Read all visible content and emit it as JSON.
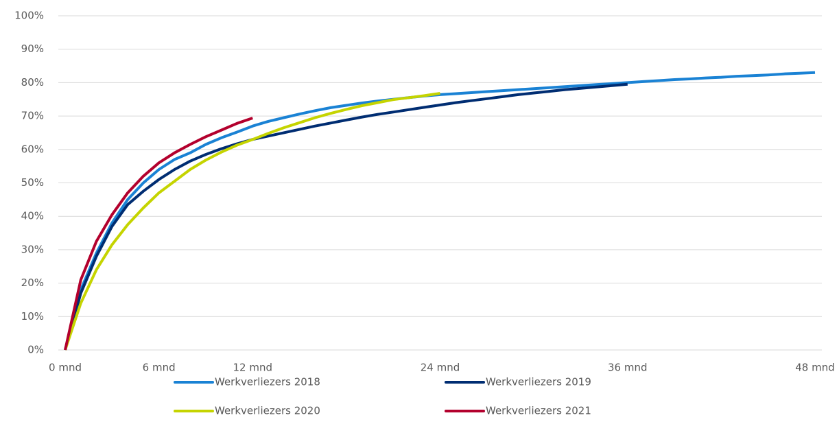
{
  "chart_data": {
    "type": "line",
    "x": [
      0,
      1,
      2,
      3,
      4,
      5,
      6,
      7,
      8,
      9,
      10,
      11,
      12,
      13,
      14,
      15,
      16,
      17,
      18,
      19,
      20,
      21,
      22,
      23,
      24,
      25,
      26,
      27,
      28,
      29,
      30,
      31,
      32,
      33,
      34,
      35,
      36,
      37,
      38,
      39,
      40,
      41,
      42,
      43,
      44,
      45,
      46,
      47,
      48
    ],
    "xlim": [
      0,
      48
    ],
    "xticks": [
      {
        "value": 0,
        "label": "0 mnd"
      },
      {
        "value": 6,
        "label": "6 mnd"
      },
      {
        "value": 12,
        "label": "12 mnd"
      },
      {
        "value": 24,
        "label": "24 mnd"
      },
      {
        "value": 36,
        "label": "36 mnd"
      },
      {
        "value": 48,
        "label": "48 mnd"
      }
    ],
    "ylim": [
      0,
      100
    ],
    "yticks": [
      {
        "value": 0,
        "label": "0%"
      },
      {
        "value": 10,
        "label": "10%"
      },
      {
        "value": 20,
        "label": "20%"
      },
      {
        "value": 30,
        "label": "30%"
      },
      {
        "value": 40,
        "label": "40%"
      },
      {
        "value": 50,
        "label": "50%"
      },
      {
        "value": 60,
        "label": "60%"
      },
      {
        "value": 70,
        "label": "70%"
      },
      {
        "value": 80,
        "label": "80%"
      },
      {
        "value": 90,
        "label": "90%"
      },
      {
        "value": 100,
        "label": "100%"
      }
    ],
    "grid": true,
    "legend": "bottom",
    "series": [
      {
        "name": "Werkverliezers 2018",
        "color": "#1a82d4",
        "values": [
          0,
          18,
          29,
          38,
          45,
          50,
          54,
          57,
          59,
          61.5,
          63.5,
          65.2,
          67,
          68.4,
          69.5,
          70.6,
          71.6,
          72.5,
          73.2,
          73.9,
          74.5,
          75,
          75.5,
          76,
          76.4,
          76.7,
          77,
          77.3,
          77.6,
          77.9,
          78.2,
          78.5,
          78.8,
          79.1,
          79.4,
          79.7,
          80,
          80.3,
          80.6,
          80.9,
          81.1,
          81.4,
          81.6,
          81.9,
          82.1,
          82.3,
          82.6,
          82.8,
          83
        ]
      },
      {
        "name": "Werkverliezers 2019",
        "color": "#002d72",
        "values": [
          0,
          17,
          28,
          37,
          43.5,
          47.5,
          51,
          54,
          56.5,
          58.5,
          60.2,
          61.7,
          63,
          64,
          65,
          66,
          67,
          67.9,
          68.8,
          69.7,
          70.5,
          71.2,
          71.9,
          72.6,
          73.3,
          74,
          74.6,
          75.2,
          75.8,
          76.4,
          76.9,
          77.4,
          77.9,
          78.3,
          78.7,
          79.1,
          79.5,
          null,
          null,
          null,
          null,
          null,
          null,
          null,
          null,
          null,
          null,
          null,
          null
        ]
      },
      {
        "name": "Werkverliezers 2020",
        "color": "#c5d400",
        "values": [
          0,
          14,
          24,
          31.5,
          37.5,
          42.5,
          47,
          50.5,
          54,
          56.8,
          59.2,
          61.3,
          63,
          64.8,
          66.5,
          68,
          69.5,
          70.8,
          72,
          73.1,
          74,
          74.9,
          75.5,
          76.1,
          76.8,
          null,
          null,
          null,
          null,
          null,
          null,
          null,
          null,
          null,
          null,
          null,
          null,
          null,
          null,
          null,
          null,
          null,
          null,
          null,
          null,
          null,
          null,
          null,
          null
        ]
      },
      {
        "name": "Werkverliezers 2021",
        "color": "#b3002d",
        "values": [
          0,
          21,
          32.5,
          40.5,
          47,
          52,
          56,
          59,
          61.5,
          63.8,
          65.8,
          67.8,
          69.4,
          null,
          null,
          null,
          null,
          null,
          null,
          null,
          null,
          null,
          null,
          null,
          null,
          null,
          null,
          null,
          null,
          null,
          null,
          null,
          null,
          null,
          null,
          null,
          null,
          null,
          null,
          null,
          null,
          null,
          null,
          null,
          null,
          null,
          null,
          null,
          null
        ]
      }
    ]
  }
}
